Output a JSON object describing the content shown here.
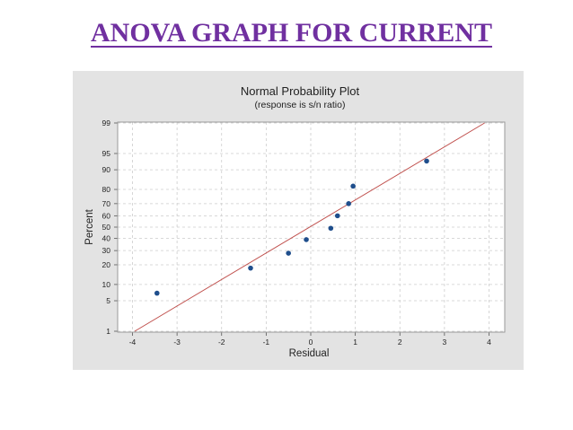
{
  "slide": {
    "title": "ANOVA GRAPH FOR CURRENT"
  },
  "colors": {
    "title": "#7030A0",
    "frame": "#e3e3e3",
    "points": "#1f4e8c",
    "fit_line": "#c0504d",
    "grid": "#cccccc"
  },
  "chart_data": {
    "type": "scatter",
    "title": "Normal Probability Plot",
    "subtitle": "(response is s/n ratio)",
    "xlabel": "Residual",
    "ylabel": "Percent",
    "xlim": [
      -4,
      4
    ],
    "x_ticks": [
      -4,
      -3,
      -2,
      -1,
      0,
      1,
      2,
      3,
      4
    ],
    "y_ticks": [
      1,
      5,
      10,
      20,
      30,
      40,
      50,
      60,
      70,
      80,
      90,
      95,
      99
    ],
    "y_scale": "normal-probability",
    "grid": true,
    "points": [
      {
        "x": -3.45,
        "y": 7
      },
      {
        "x": -1.35,
        "y": 18
      },
      {
        "x": -0.5,
        "y": 28
      },
      {
        "x": -0.1,
        "y": 39
      },
      {
        "x": 0.45,
        "y": 49
      },
      {
        "x": 0.6,
        "y": 60
      },
      {
        "x": 0.85,
        "y": 70
      },
      {
        "x": 0.95,
        "y": 82
      },
      {
        "x": 2.6,
        "y": 93
      }
    ],
    "fit_line": {
      "x": [
        -3.95,
        3.9
      ],
      "y": [
        1,
        99
      ]
    }
  }
}
